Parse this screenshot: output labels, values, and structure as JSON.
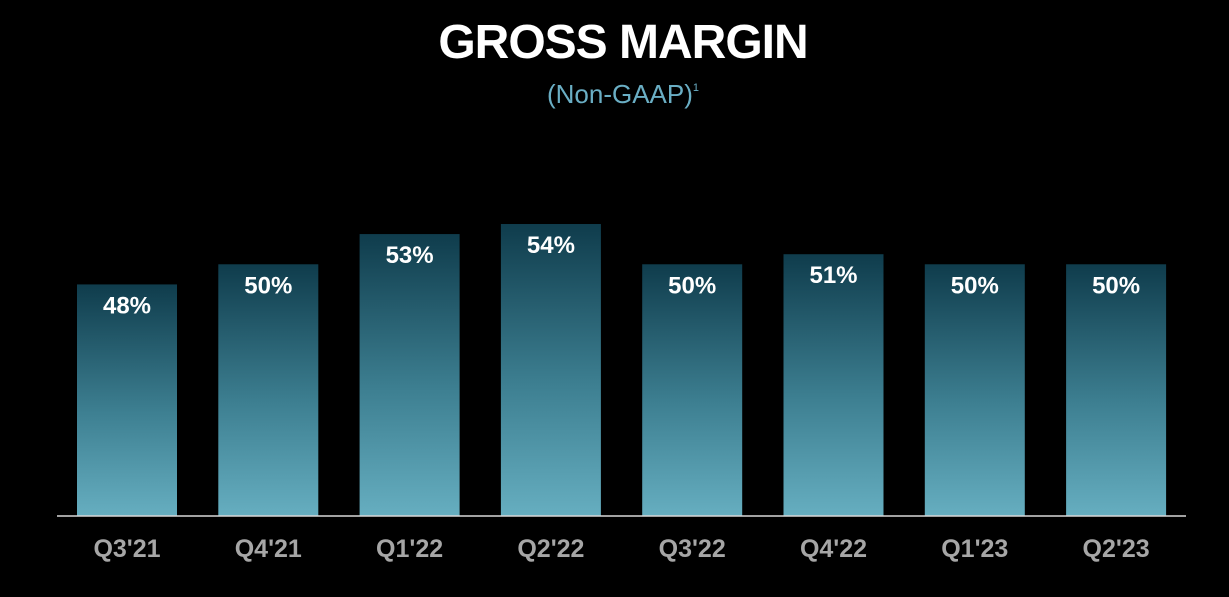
{
  "title": "GROSS MARGIN",
  "subtitle": "(Non-GAAP)",
  "subtitle_footnote": "1",
  "chart_data": {
    "type": "bar",
    "title": "GROSS MARGIN",
    "subtitle": "(Non-GAAP)",
    "categories": [
      "Q3'21",
      "Q4'21",
      "Q1'22",
      "Q2'22",
      "Q3'22",
      "Q4'22",
      "Q1'23",
      "Q2'23"
    ],
    "values": [
      48,
      50,
      53,
      54,
      50,
      51,
      50,
      50
    ],
    "data_labels": [
      "48%",
      "50%",
      "53%",
      "54%",
      "50%",
      "51%",
      "50%",
      "50%"
    ],
    "xlabel": "",
    "ylabel": "",
    "ylim": [
      25,
      54
    ],
    "grid": false,
    "legend": "none",
    "colors": {
      "background": "#000000",
      "bar_top": "#0f3c4c",
      "bar_bottom": "#66aec0",
      "axis_line": "#d8d8d8",
      "data_label": "#ffffff",
      "tick_label": "#a6a6a6"
    }
  }
}
